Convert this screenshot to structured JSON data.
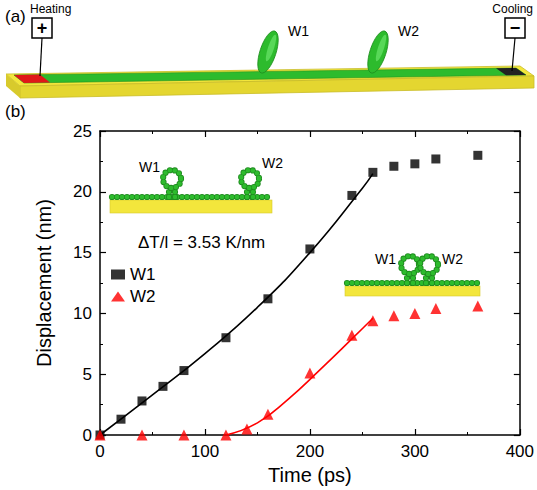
{
  "panel_a": {
    "letter": "(a)",
    "heating_label": "Heating",
    "heating_sign": "+",
    "cooling_label": "Cooling",
    "cooling_sign": "−",
    "wrinkle_labels": [
      "W1",
      "W2"
    ]
  },
  "chart_data": {
    "type": "scatter",
    "panel_label": "(b)",
    "x_label": "Time (ps)",
    "y_label": "Displacement (nm)",
    "xlim": [
      0,
      400
    ],
    "xticks": [
      0,
      100,
      200,
      300,
      400
    ],
    "ylim": [
      0,
      25
    ],
    "yticks": [
      0,
      5,
      10,
      15,
      20,
      25
    ],
    "grid": false,
    "legend": "left",
    "annotations": [
      "ΔT/l = 3.53 K/nm"
    ],
    "insets": [
      {
        "labels": [
          "W1",
          "W2"
        ]
      },
      {
        "labels": [
          "W1",
          "W2"
        ]
      }
    ],
    "series": [
      {
        "name": "W1",
        "color": "#000000",
        "marker": "square",
        "line_style": "solid",
        "x": [
          0,
          20,
          40,
          60,
          80,
          120,
          160,
          200,
          240,
          260,
          280,
          300,
          320,
          360
        ],
        "values": [
          0,
          1.3,
          2.8,
          4.0,
          5.3,
          8.0,
          11.2,
          15.3,
          19.7,
          21.6,
          22.1,
          22.3,
          22.7,
          23.0
        ],
        "fit": {
          "x": [
            0,
            50,
            100,
            150,
            200,
            250,
            260
          ],
          "values": [
            0,
            3.3,
            6.7,
            10.5,
            15.0,
            20.3,
            21.5
          ]
        }
      },
      {
        "name": "W2",
        "color": "#ff0000",
        "marker": "triangle",
        "line_style": "solid",
        "x": [
          0,
          40,
          80,
          120,
          140,
          160,
          200,
          240,
          260,
          280,
          300,
          320,
          360
        ],
        "values": [
          0,
          0,
          0,
          0,
          0.5,
          1.7,
          5.1,
          8.2,
          9.4,
          9.8,
          10.0,
          10.4,
          10.6
        ],
        "fit": {
          "x": [
            120,
            150,
            180,
            210,
            240,
            260
          ],
          "values": [
            0,
            1.0,
            3.0,
            5.4,
            7.9,
            9.6
          ]
        }
      }
    ]
  }
}
